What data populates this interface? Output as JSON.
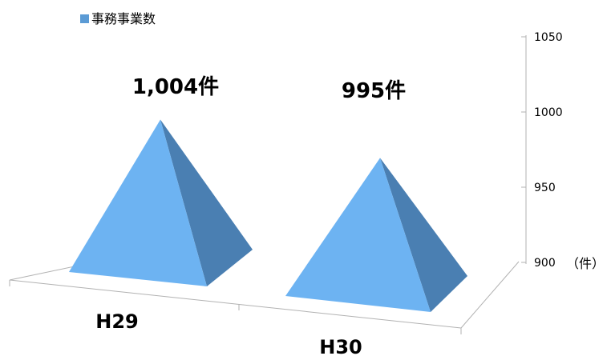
{
  "chart_data": {
    "type": "bar",
    "bar_shape": "pyramid",
    "view": "3d",
    "categories": [
      "H29",
      "H30"
    ],
    "series": [
      {
        "name": "事務事業数",
        "values": [
          1004,
          995
        ],
        "data_labels": [
          "1,004件",
          "995件"
        ],
        "color": "#5b9bd5"
      }
    ],
    "y_axis": {
      "position": "right",
      "min": 900,
      "max": 1050,
      "ticks": [
        900,
        950,
        1000,
        1050
      ],
      "unit_label": "（件）"
    },
    "legend": {
      "position": "top-left"
    },
    "grid": false,
    "colors": {
      "front_face": "#6db3f2",
      "side_face": "#4a7fb2",
      "axis_line": "#b2b2b2",
      "legend_marker": "#5b9bd5",
      "text": "#000000"
    }
  }
}
